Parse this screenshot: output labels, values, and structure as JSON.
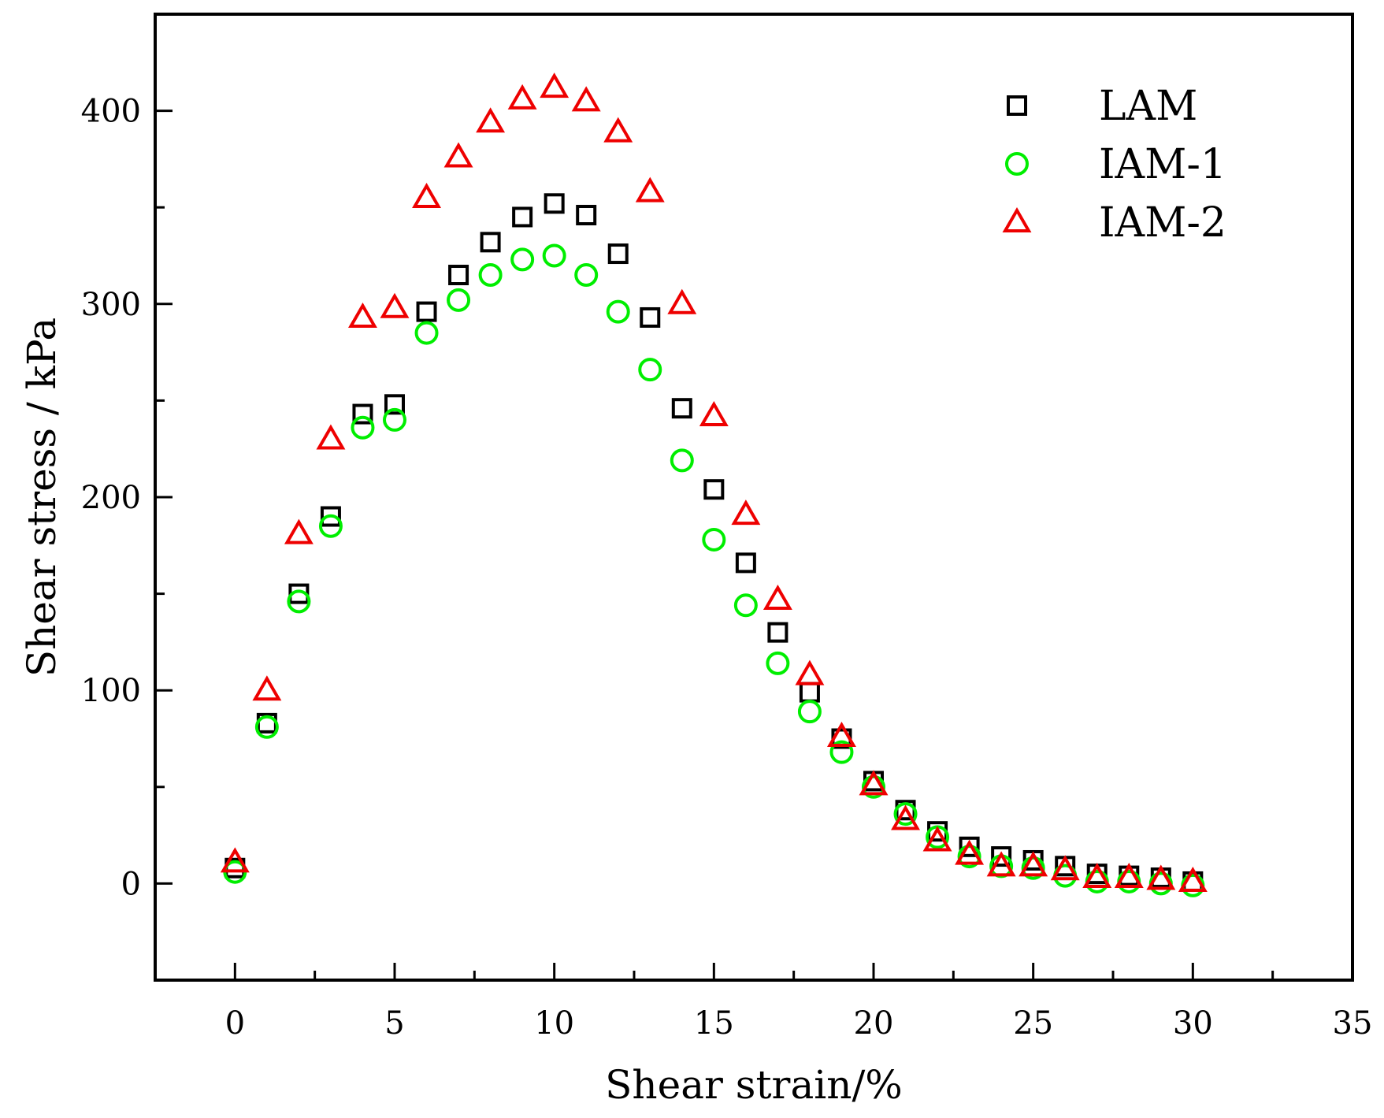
{
  "chart_data": {
    "type": "scatter",
    "title": "",
    "xlabel": "Shear strain/%",
    "ylabel": "Shear stress / kPa",
    "xlim": [
      -2.5,
      35
    ],
    "ylim": [
      -50,
      450
    ],
    "xticks": [
      0,
      5,
      10,
      15,
      20,
      25,
      30,
      35
    ],
    "xtick_labels": [
      "0",
      "5",
      "10",
      "15",
      "20",
      "25",
      "30",
      "35"
    ],
    "yticks": [
      0,
      100,
      200,
      300,
      400
    ],
    "ytick_labels": [
      "0",
      "100",
      "200",
      "300",
      "400"
    ],
    "grid": false,
    "legend_position": "top-right",
    "x": [
      0,
      1,
      2,
      3,
      4,
      5,
      6,
      7,
      8,
      9,
      10,
      11,
      12,
      13,
      14,
      15,
      16,
      17,
      18,
      19,
      20,
      21,
      22,
      23,
      24,
      25,
      26,
      27,
      28,
      29,
      30
    ],
    "series": [
      {
        "name": "LAM",
        "marker": "square",
        "color": "#000000",
        "values": [
          8,
          83,
          150,
          190,
          243,
          248,
          296,
          315,
          332,
          345,
          352,
          346,
          326,
          293,
          246,
          204,
          166,
          130,
          99,
          75,
          53,
          38,
          27,
          19,
          14,
          12,
          9,
          5,
          4,
          3,
          1
        ]
      },
      {
        "name": "IAM-1",
        "marker": "circle",
        "color": "#00ee00",
        "values": [
          6,
          81,
          146,
          185,
          236,
          240,
          285,
          302,
          315,
          323,
          325,
          315,
          296,
          266,
          219,
          178,
          144,
          114,
          89,
          68,
          50,
          36,
          24,
          14,
          9,
          8,
          4,
          1,
          1,
          0,
          -1
        ]
      },
      {
        "name": "IAM-2",
        "marker": "triangle",
        "color": "#ee0000",
        "values": [
          11,
          100,
          181,
          230,
          293,
          298,
          355,
          376,
          394,
          406,
          412,
          405,
          389,
          358,
          300,
          242,
          191,
          147,
          108,
          76,
          51,
          33,
          22,
          15,
          9,
          9,
          7,
          3,
          3,
          2,
          1
        ]
      }
    ]
  }
}
